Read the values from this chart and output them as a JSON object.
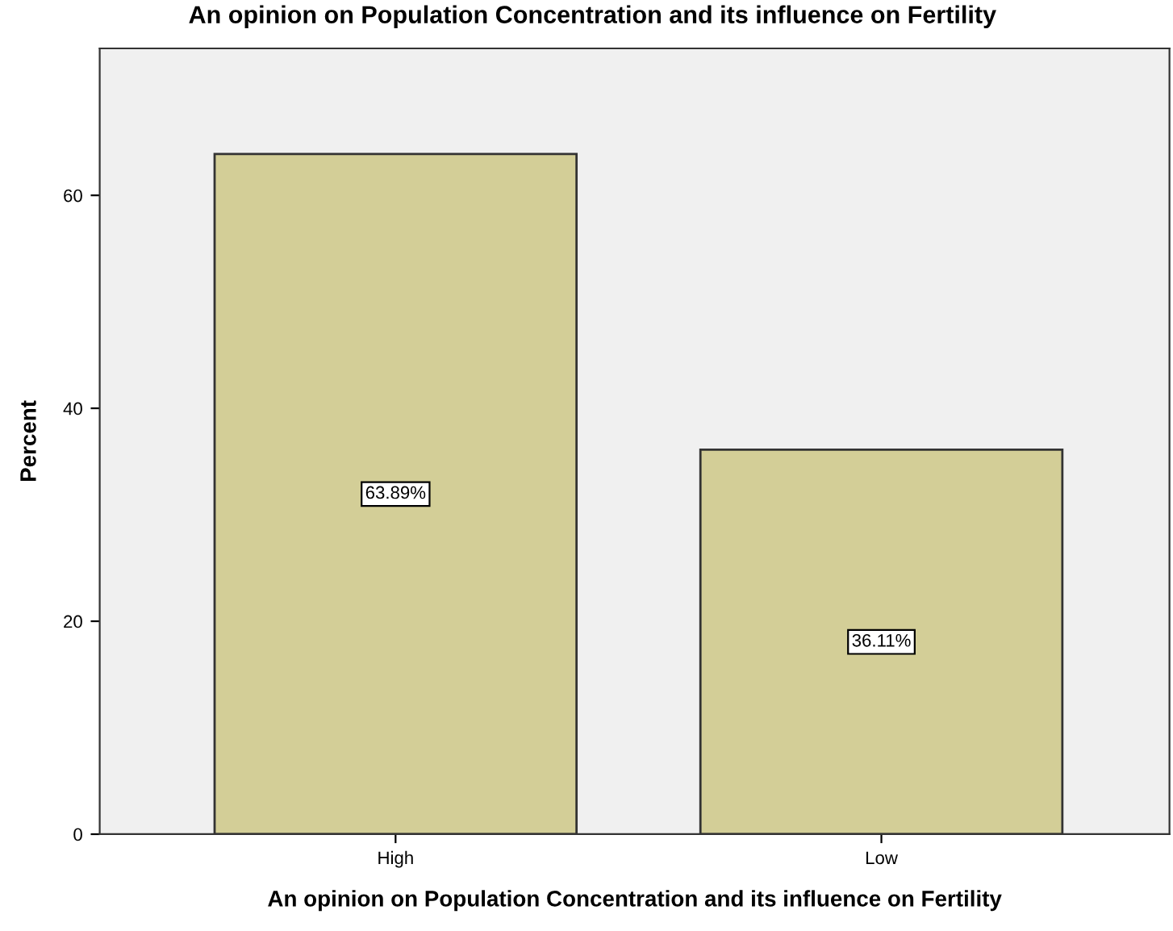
{
  "chart_data": {
    "type": "bar",
    "title": "An opinion on Population Concentration and its influence on Fertility",
    "xlabel": "An opinion on Population Concentration and its influence on Fertility",
    "ylabel": "Percent",
    "categories": [
      "High",
      "Low"
    ],
    "values": [
      63.89,
      36.11
    ],
    "color": "#d3ce97",
    "value_labels": [
      "63.89%",
      "36.11%"
    ],
    "ylim": [
      0,
      73.8
    ],
    "yticks": [
      0,
      20,
      40,
      60
    ],
    "grid": false,
    "legend": false
  }
}
